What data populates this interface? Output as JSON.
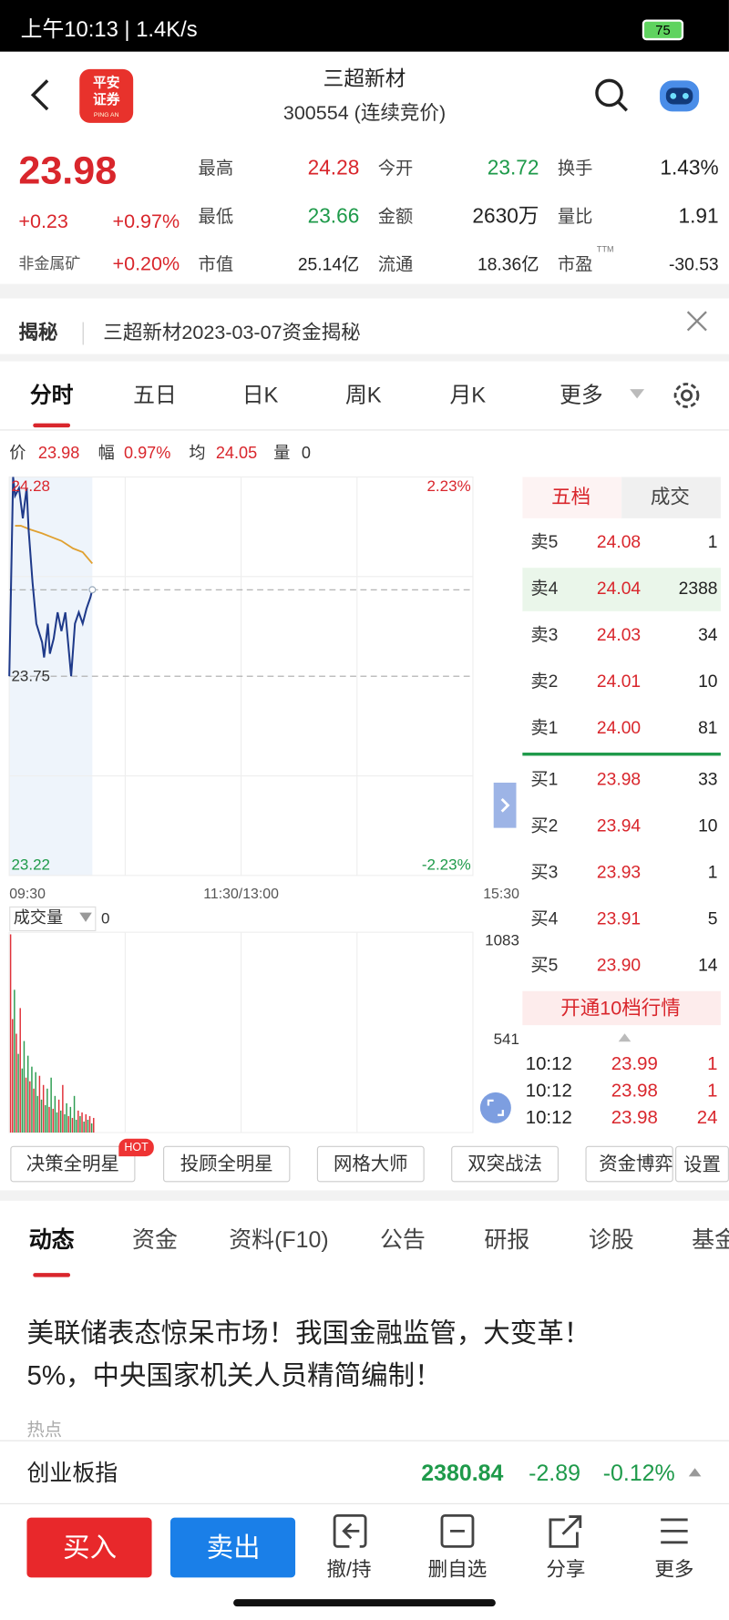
{
  "status_bar": {
    "time": "上午10:13 | 1.4K/s",
    "battery": "75"
  },
  "header": {
    "logo_line1": "平安",
    "logo_line2": "证券",
    "logo_sub": "PING AN",
    "name": "三超新材",
    "subtitle": "300554 (连续竞价)"
  },
  "quote": {
    "price": "23.98",
    "change": "+0.23",
    "change_pct": "+0.97%",
    "sector": "非金属矿",
    "sector_pct": "+0.20%",
    "stats": [
      {
        "label": "最高",
        "value": "24.28",
        "color": "#d9262c"
      },
      {
        "label": "今开",
        "value": "23.72",
        "color": "#1e9a4a"
      },
      {
        "label": "换手",
        "value": "1.43%",
        "color": "#222222"
      },
      {
        "label": "最低",
        "value": "23.66",
        "color": "#1e9a4a"
      },
      {
        "label": "金额",
        "value": "2630万",
        "color": "#222222"
      },
      {
        "label": "量比",
        "value": "1.91",
        "color": "#222222"
      },
      {
        "label": "市值",
        "value": "25.14亿",
        "color": "#222222"
      },
      {
        "label": "流通",
        "value": "18.36亿",
        "color": "#222222"
      },
      {
        "label": "市盈",
        "sup": "TTM",
        "value": "-30.53",
        "color": "#222222"
      }
    ]
  },
  "notice": {
    "tag": "揭秘",
    "text": "三超新材2023-03-07资金揭秘"
  },
  "tabs": [
    "分时",
    "五日",
    "日K",
    "周K",
    "月K",
    "更多"
  ],
  "info_line": {
    "price_label": "价",
    "price": "23.98",
    "amp_label": "幅",
    "amp": "0.97%",
    "avg_label": "均",
    "avg": "24.05",
    "vol_label": "量",
    "vol": "0"
  },
  "intraday": {
    "xlim": [
      0,
      240
    ],
    "xticks": [
      {
        "value": 0,
        "label": "09:30"
      },
      {
        "value": 120,
        "label": "11:30/13:00"
      },
      {
        "value": 240,
        "label": "15:30"
      }
    ],
    "ylim": [
      23.22,
      24.28
    ],
    "yticks": [
      24.28,
      23.75,
      23.22
    ],
    "pct_labels": [
      {
        "value": 24.28,
        "label": "2.23%"
      },
      {
        "value": 23.22,
        "label": "-2.23%"
      }
    ],
    "pre_close": 23.75,
    "last_price": 23.98,
    "price_color": "#1f3a8a",
    "avg_color": "#e0a030",
    "minutes": [
      0,
      2,
      3,
      5,
      7,
      9,
      10,
      12,
      14,
      17,
      18,
      20,
      21,
      23,
      25,
      27,
      29,
      32,
      34,
      36,
      38,
      40,
      42,
      43
    ],
    "price": [
      23.75,
      24.28,
      24.23,
      24.25,
      24.17,
      24.25,
      24.14,
      24.0,
      23.89,
      23.84,
      23.8,
      23.89,
      23.81,
      23.85,
      23.92,
      23.87,
      23.92,
      23.75,
      23.89,
      23.92,
      23.89,
      23.93,
      23.96,
      23.98
    ],
    "avg_minutes": [
      3,
      6,
      11,
      17,
      22,
      27,
      33,
      38,
      43
    ],
    "avg": [
      24.15,
      24.15,
      24.14,
      24.13,
      24.12,
      24.11,
      24.09,
      24.08,
      24.05
    ],
    "volume_label": "成交量",
    "volume_value": "0",
    "volume_ylim": [
      0,
      1083
    ],
    "volume_yticks": [
      1083,
      541
    ],
    "up_color": "#e0323a",
    "down_color": "#2e9d52",
    "volume": [
      1083,
      620,
      780,
      540,
      430,
      680,
      350,
      500,
      300,
      420,
      280,
      360,
      240,
      330,
      200,
      310,
      180,
      260,
      150,
      240,
      140,
      300,
      130,
      200,
      110,
      180,
      120,
      260,
      100,
      160,
      90,
      140,
      80,
      200,
      70,
      120,
      90,
      110,
      60,
      100,
      70,
      90,
      50,
      80
    ],
    "volume_rising": [
      true,
      true,
      false,
      true,
      false,
      true,
      false,
      false,
      true,
      false,
      true,
      false,
      true,
      false,
      false,
      true,
      false,
      true,
      false,
      false,
      true,
      false,
      true,
      false,
      false,
      true,
      false,
      true,
      false,
      false,
      true,
      false,
      true,
      false,
      false,
      true,
      false,
      true,
      false,
      true,
      false,
      true,
      false,
      true
    ]
  },
  "order_book": {
    "tabs": [
      "五档",
      "成交"
    ],
    "asks": [
      {
        "label": "卖5",
        "price": "24.08",
        "qty": "1"
      },
      {
        "label": "卖4",
        "price": "24.04",
        "qty": "2388"
      },
      {
        "label": "卖3",
        "price": "24.03",
        "qty": "34"
      },
      {
        "label": "卖2",
        "price": "24.01",
        "qty": "10"
      },
      {
        "label": "卖1",
        "price": "24.00",
        "qty": "81"
      }
    ],
    "bids": [
      {
        "label": "买1",
        "price": "23.98",
        "qty": "33"
      },
      {
        "label": "买2",
        "price": "23.94",
        "qty": "10"
      },
      {
        "label": "买3",
        "price": "23.93",
        "qty": "1"
      },
      {
        "label": "买4",
        "price": "23.91",
        "qty": "5"
      },
      {
        "label": "买5",
        "price": "23.90",
        "qty": "14"
      }
    ],
    "promo": "开通10档行情",
    "trades": [
      {
        "time": "10:12",
        "price": "23.99",
        "qty": "1"
      },
      {
        "time": "10:12",
        "price": "23.98",
        "qty": "1"
      },
      {
        "time": "10:12",
        "price": "23.98",
        "qty": "24"
      }
    ]
  },
  "tools": {
    "buttons": [
      "决策全明星",
      "投顾全明星",
      "网格大师",
      "双突战法",
      "资金博弈"
    ],
    "badge": "HOT",
    "settings": "设置"
  },
  "content_tabs": [
    "动态",
    "资金",
    "资料(F10)",
    "公告",
    "研报",
    "诊股",
    "基金"
  ],
  "news": {
    "headline_line1": "美联储表态惊呆市场！我国金融监管，大变革！",
    "headline_line2": "5%，中央国家机关人员精简编制！",
    "tag": "热点"
  },
  "index_bar": {
    "name": "创业板指",
    "value": "2380.84",
    "change": "-2.89",
    "change_pct": "-0.12%"
  },
  "bottom_bar": {
    "buy": "买入",
    "sell": "卖出",
    "actions": [
      "撤/持",
      "删自选",
      "分享",
      "更多"
    ]
  }
}
